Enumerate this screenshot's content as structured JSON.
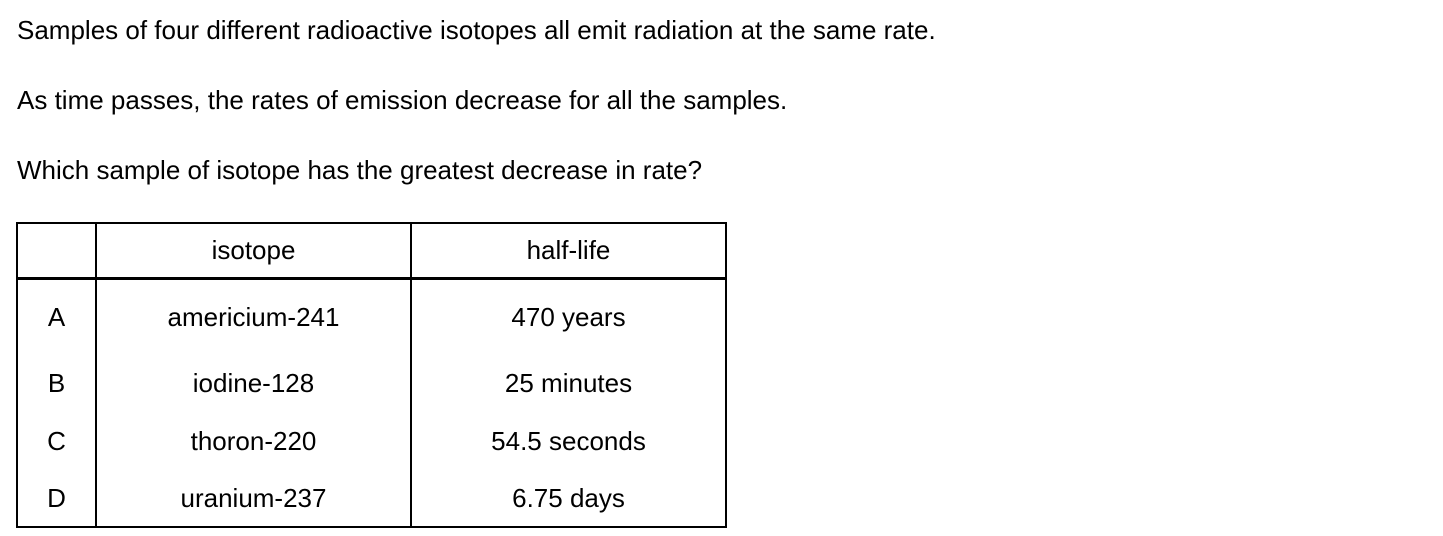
{
  "question": {
    "line1": "Samples of four different radioactive isotopes all emit radiation at the same rate.",
    "line2": "As time passes, the rates of emission decrease for all the samples.",
    "line3": "Which sample of isotope has the greatest decrease in rate?"
  },
  "table": {
    "headers": [
      "",
      "isotope",
      "half-life"
    ],
    "rows": [
      {
        "letter": "A",
        "isotope": "americium-241",
        "half_life": "470 years"
      },
      {
        "letter": "B",
        "isotope": "iodine-128",
        "half_life": "25 minutes"
      },
      {
        "letter": "C",
        "isotope": "thoron-220",
        "half_life": "54.5 seconds"
      },
      {
        "letter": "D",
        "isotope": "uranium-237",
        "half_life": "6.75 days"
      }
    ]
  }
}
